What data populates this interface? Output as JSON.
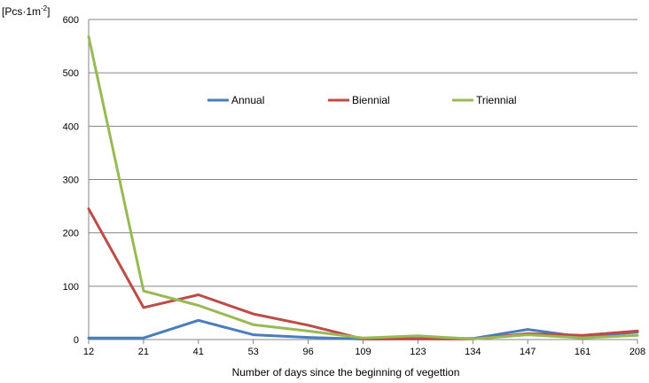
{
  "chart_data": {
    "type": "line",
    "title": "",
    "ylabel": "[Pcs·1m",
    "ylabel_sup": "-2",
    "ylabel_end": "]",
    "xlabel": "Number of days since the  beginning of vegettion",
    "categories": [
      "12",
      "21",
      "41",
      "53",
      "96",
      "109",
      "123",
      "134",
      "147",
      "161",
      "208"
    ],
    "ylim": [
      0,
      600
    ],
    "yticks": [
      0,
      100,
      200,
      300,
      400,
      500,
      600
    ],
    "grid": true,
    "legend_position": "center-top",
    "series": [
      {
        "name": "Annual",
        "color": "#4a7ebb",
        "values": [
          3,
          3,
          36,
          9,
          4,
          1,
          2,
          2,
          19,
          5,
          14
        ]
      },
      {
        "name": "Biennial",
        "color": "#be4b48",
        "values": [
          245,
          60,
          84,
          48,
          27,
          1,
          1,
          1,
          11,
          8,
          16
        ]
      },
      {
        "name": "Triennial",
        "color": "#98b954",
        "values": [
          568,
          91,
          64,
          28,
          16,
          3,
          7,
          1,
          9,
          3,
          8
        ]
      }
    ]
  }
}
